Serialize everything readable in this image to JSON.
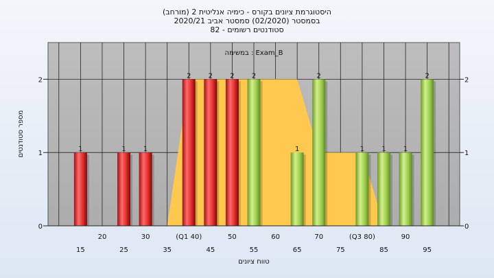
{
  "chart_data": {
    "type": "bar",
    "title_lines": [
      "היסטוגרמת ציונים בקורס - כימיה אנליטית 2 (מורחב)",
      "בסמסטר (02/2020) סמסטר אביב 2020/21",
      "סטודנטים רשומים - 82"
    ],
    "annotation": "במשימה : Exam_B",
    "xlabel": "טווח ציונים",
    "ylabel": "מספר סטודנטים",
    "ylim": [
      0,
      2.5
    ],
    "y_ticks": [
      0,
      1,
      2
    ],
    "x_ticks_lower": [
      "15",
      "25",
      "35",
      "45",
      "55",
      "65",
      "75",
      "85",
      "95"
    ],
    "x_ticks_upper": [
      "20",
      "30",
      "(Q1 40)",
      "50",
      "60",
      "70",
      "(Q3 80)",
      "90"
    ],
    "bars": [
      {
        "x": 15,
        "value": 1,
        "label": "1",
        "group": "red"
      },
      {
        "x": 25,
        "value": 1,
        "label": "1",
        "group": "red"
      },
      {
        "x": 30,
        "value": 1,
        "label": "1",
        "group": "red"
      },
      {
        "x": 40,
        "value": 2,
        "label": "2",
        "group": "red"
      },
      {
        "x": 45,
        "value": 2,
        "label": "2",
        "group": "red"
      },
      {
        "x": 50,
        "value": 2,
        "label": "2",
        "group": "red"
      },
      {
        "x": 55,
        "value": 2,
        "label": "2",
        "group": "green"
      },
      {
        "x": 65,
        "value": 1,
        "label": "1",
        "group": "green"
      },
      {
        "x": 70,
        "value": 2,
        "label": "2",
        "group": "green"
      },
      {
        "x": 80,
        "value": 1,
        "label": "1",
        "group": "green"
      },
      {
        "x": 85,
        "value": 1,
        "label": "1",
        "group": "green"
      },
      {
        "x": 90,
        "value": 1,
        "label": "1",
        "group": "green"
      },
      {
        "x": 95,
        "value": 2,
        "label": "2",
        "group": "green"
      }
    ],
    "area_series": [
      {
        "x": 35,
        "y": 0
      },
      {
        "x": 40,
        "y": 2
      },
      {
        "x": 65,
        "y": 2
      },
      {
        "x": 70,
        "y": 1
      },
      {
        "x": 80,
        "y": 1
      },
      {
        "x": 85,
        "y": 0
      }
    ],
    "grid": true,
    "colors": {
      "plot_background": "#b4b4b4",
      "red_bar": "#e02b2b",
      "green_bar": "#9ccd4e",
      "area_fill": "#ffc94f"
    }
  }
}
